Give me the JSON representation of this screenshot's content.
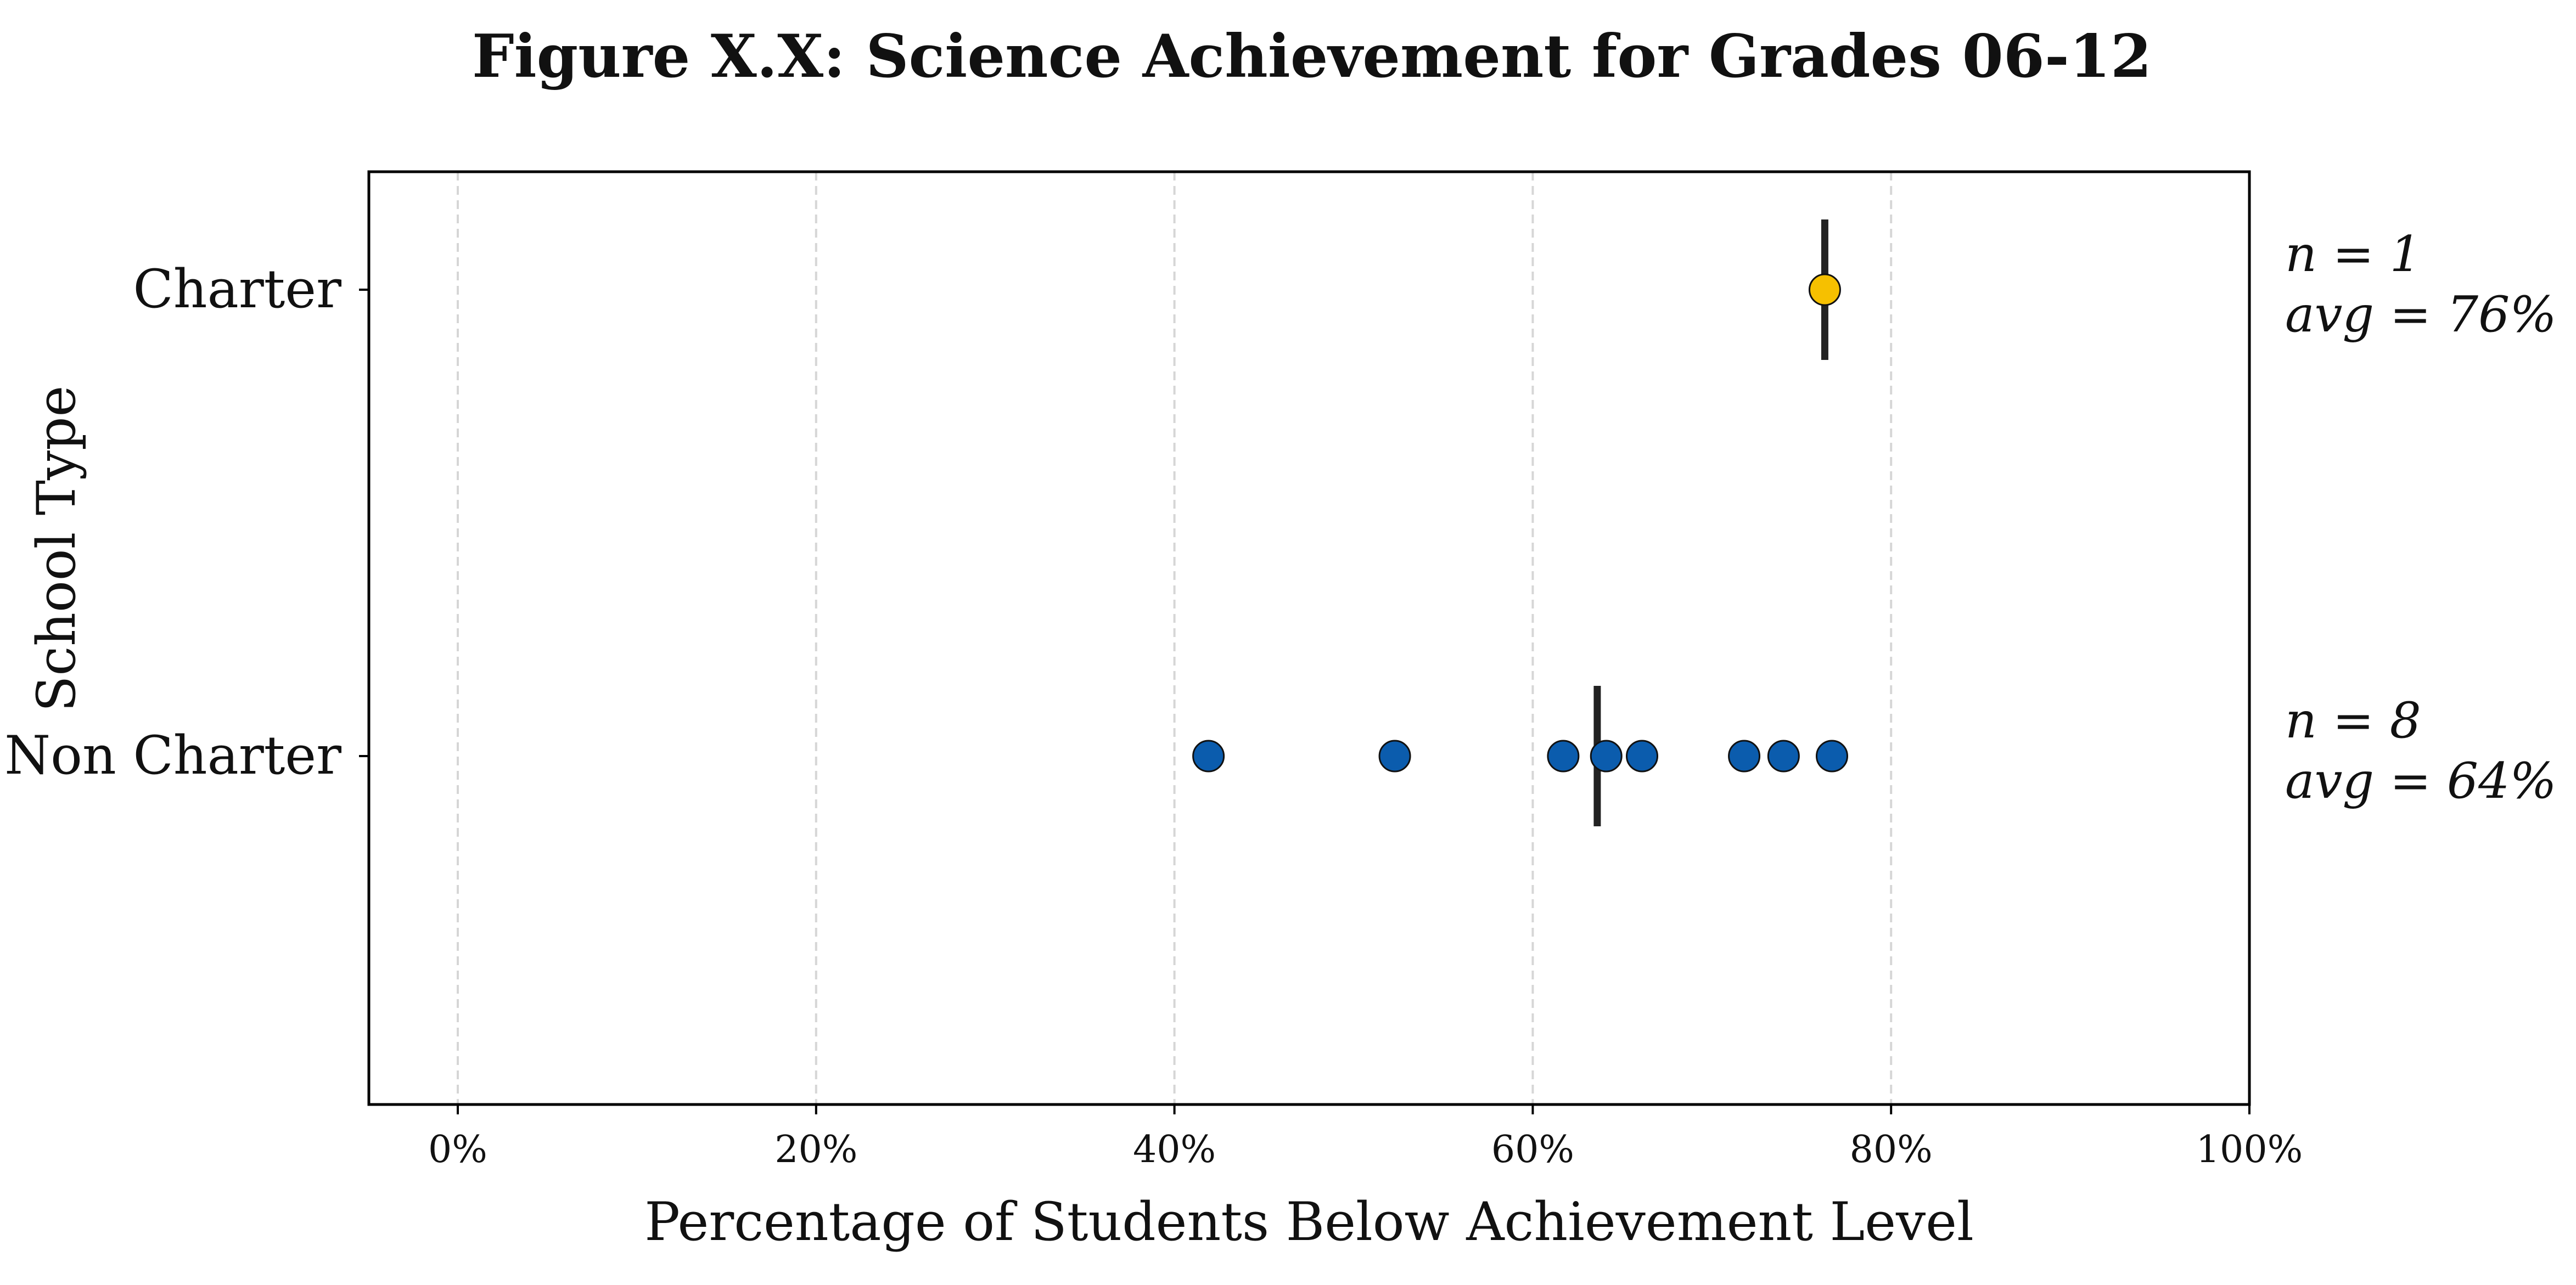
{
  "chart_data": {
    "type": "scatter",
    "title": "Figure X.X: Science Achievement for Grades 06-12",
    "xlabel": "Percentage of Students Below Achievement Level",
    "ylabel": "School Type",
    "xlim": [
      0,
      100
    ],
    "x_ticks": [
      "0%",
      "20%",
      "40%",
      "60%",
      "80%",
      "100%"
    ],
    "x_tick_values": [
      0,
      20,
      40,
      60,
      80,
      100
    ],
    "categories": [
      "Charter",
      "Non Charter"
    ],
    "grid": "vertical dashed",
    "series": [
      {
        "category": "Charter",
        "color": "#F6C000",
        "values": [
          76.3
        ],
        "mean": 76.3,
        "annotation": {
          "n_label": "n = 1",
          "avg_label": "avg = 76%"
        }
      },
      {
        "category": "Non Charter",
        "color": "#0B5CAD",
        "values": [
          41.9,
          52.3,
          61.7,
          64.1,
          66.1,
          71.8,
          74.0,
          76.7
        ],
        "mean": 63.6,
        "annotation": {
          "n_label": "n = 8",
          "avg_label": "avg = 64%"
        }
      }
    ],
    "mean_marker_color": "#222222"
  }
}
